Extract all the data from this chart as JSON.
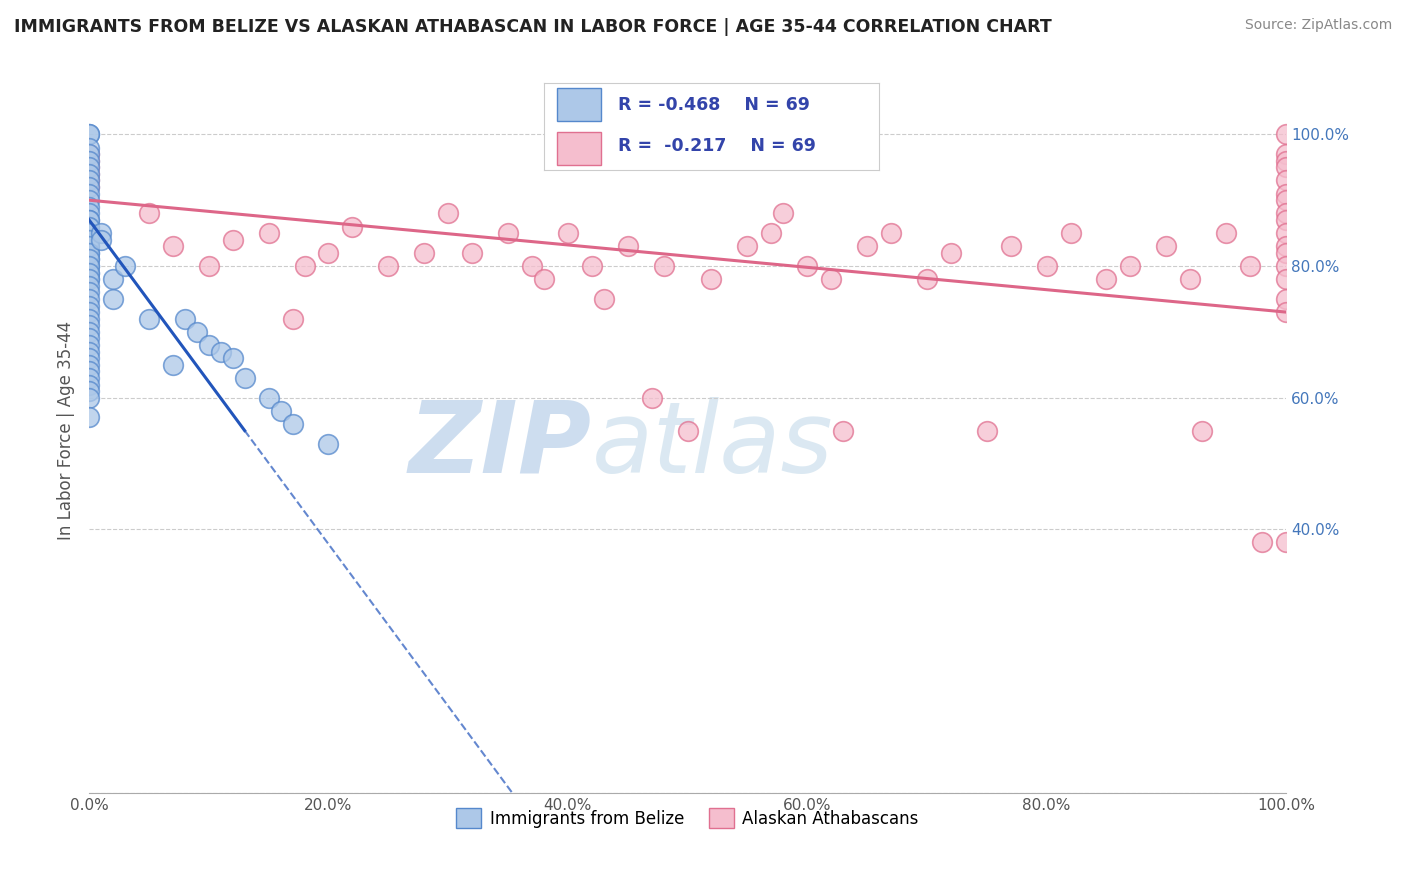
{
  "title": "IMMIGRANTS FROM BELIZE VS ALASKAN ATHABASCAN IN LABOR FORCE | AGE 35-44 CORRELATION CHART",
  "source": "Source: ZipAtlas.com",
  "ylabel": "In Labor Force | Age 35-44",
  "xlim": [
    0.0,
    1.0
  ],
  "ylim": [
    0.0,
    1.1
  ],
  "x_tick_labels": [
    "0.0%",
    "20.0%",
    "40.0%",
    "60.0%",
    "80.0%",
    "100.0%"
  ],
  "x_tick_vals": [
    0.0,
    0.2,
    0.4,
    0.6,
    0.8,
    1.0
  ],
  "y_tick_labels": [
    "",
    "40.0%",
    "60.0%",
    "80.0%",
    "100.0%"
  ],
  "y_tick_vals": [
    0.0,
    0.4,
    0.6,
    0.8,
    1.0
  ],
  "legend_r_blue": "-0.468",
  "legend_n_blue": "69",
  "legend_r_pink": "-0.217",
  "legend_n_pink": "69",
  "blue_color": "#adc8e8",
  "blue_edge_color": "#5588cc",
  "pink_color": "#f5bece",
  "pink_edge_color": "#e07090",
  "blue_line_color": "#2255bb",
  "pink_line_color": "#dd6688",
  "background_color": "#ffffff",
  "grid_color": "#cccccc",
  "blue_scatter_x": [
    0.0,
    0.0,
    0.0,
    0.0,
    0.0,
    0.0,
    0.0,
    0.0,
    0.0,
    0.0,
    0.0,
    0.0,
    0.0,
    0.0,
    0.0,
    0.0,
    0.0,
    0.0,
    0.0,
    0.0,
    0.0,
    0.0,
    0.0,
    0.0,
    0.0,
    0.0,
    0.0,
    0.0,
    0.0,
    0.0,
    0.0,
    0.0,
    0.0,
    0.0,
    0.0,
    0.0,
    0.0,
    0.0,
    0.0,
    0.0,
    0.0,
    0.0,
    0.0,
    0.0,
    0.0,
    0.0,
    0.0,
    0.0,
    0.0,
    0.0,
    0.0,
    0.0,
    0.01,
    0.01,
    0.02,
    0.02,
    0.03,
    0.05,
    0.07,
    0.08,
    0.09,
    0.1,
    0.11,
    0.12,
    0.13,
    0.15,
    0.16,
    0.17,
    0.2
  ],
  "blue_scatter_y": [
    1.0,
    1.0,
    0.98,
    0.97,
    0.96,
    0.95,
    0.94,
    0.93,
    0.92,
    0.91,
    0.9,
    0.89,
    0.88,
    0.87,
    0.86,
    0.85,
    0.84,
    0.83,
    0.82,
    0.81,
    0.8,
    0.79,
    0.78,
    0.87,
    0.86,
    0.85,
    0.84,
    0.83,
    0.82,
    0.81,
    0.8,
    0.79,
    0.78,
    0.77,
    0.76,
    0.75,
    0.74,
    0.73,
    0.72,
    0.71,
    0.7,
    0.69,
    0.68,
    0.67,
    0.66,
    0.65,
    0.64,
    0.63,
    0.62,
    0.61,
    0.6,
    0.57,
    0.85,
    0.84,
    0.78,
    0.75,
    0.8,
    0.72,
    0.65,
    0.72,
    0.7,
    0.68,
    0.67,
    0.66,
    0.63,
    0.6,
    0.58,
    0.56,
    0.53
  ],
  "pink_scatter_x": [
    0.0,
    0.0,
    0.0,
    0.0,
    0.0,
    0.0,
    0.05,
    0.07,
    0.1,
    0.12,
    0.15,
    0.17,
    0.18,
    0.2,
    0.22,
    0.25,
    0.28,
    0.3,
    0.32,
    0.35,
    0.37,
    0.38,
    0.4,
    0.42,
    0.43,
    0.45,
    0.47,
    0.48,
    0.5,
    0.52,
    0.55,
    0.57,
    0.58,
    0.6,
    0.62,
    0.63,
    0.65,
    0.67,
    0.7,
    0.72,
    0.75,
    0.77,
    0.8,
    0.82,
    0.85,
    0.87,
    0.9,
    0.92,
    0.93,
    0.95,
    0.97,
    0.98,
    1.0,
    1.0,
    1.0,
    1.0,
    1.0,
    1.0,
    1.0,
    1.0,
    1.0,
    1.0,
    1.0,
    1.0,
    1.0,
    1.0,
    1.0,
    1.0,
    1.0
  ],
  "pink_scatter_y": [
    0.97,
    0.96,
    0.95,
    0.94,
    0.93,
    0.92,
    0.88,
    0.83,
    0.8,
    0.84,
    0.85,
    0.72,
    0.8,
    0.82,
    0.86,
    0.8,
    0.82,
    0.88,
    0.82,
    0.85,
    0.8,
    0.78,
    0.85,
    0.8,
    0.75,
    0.83,
    0.6,
    0.8,
    0.55,
    0.78,
    0.83,
    0.85,
    0.88,
    0.8,
    0.78,
    0.55,
    0.83,
    0.85,
    0.78,
    0.82,
    0.55,
    0.83,
    0.8,
    0.85,
    0.78,
    0.8,
    0.83,
    0.78,
    0.55,
    0.85,
    0.8,
    0.38,
    1.0,
    0.97,
    0.96,
    0.95,
    0.93,
    0.91,
    0.9,
    0.88,
    0.87,
    0.85,
    0.83,
    0.82,
    0.8,
    0.78,
    0.75,
    0.73,
    0.38
  ]
}
